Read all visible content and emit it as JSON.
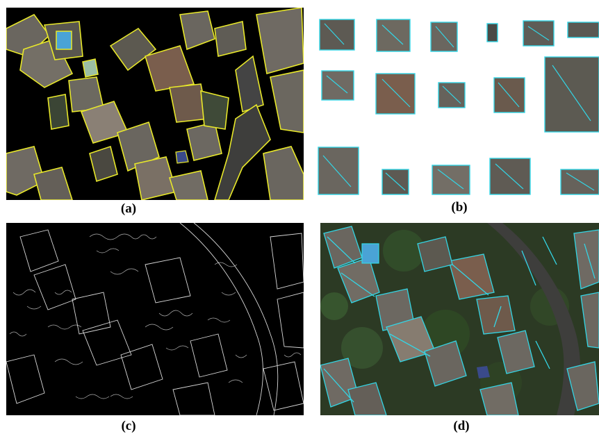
{
  "captions": {
    "a": "(a)",
    "b": "(b)",
    "c": "(c)",
    "d": "(d)"
  },
  "colors": {
    "segmentation_outline": "#e8e82a",
    "line_segments": "#33d6e6",
    "roof_gray": "#6f6a63",
    "roof_brown": "#7a5e4d",
    "vegetation": "#2f4a24",
    "road": "#3e3e3c",
    "edge_white": "#f2f2f2",
    "pool_blue": "#4aa3d6"
  },
  "panels": {
    "a": {
      "name": "segmentation-panel"
    },
    "b": {
      "name": "roof-patches-panel"
    },
    "c": {
      "name": "edge-map-panel"
    },
    "d": {
      "name": "line-detection-panel"
    }
  }
}
